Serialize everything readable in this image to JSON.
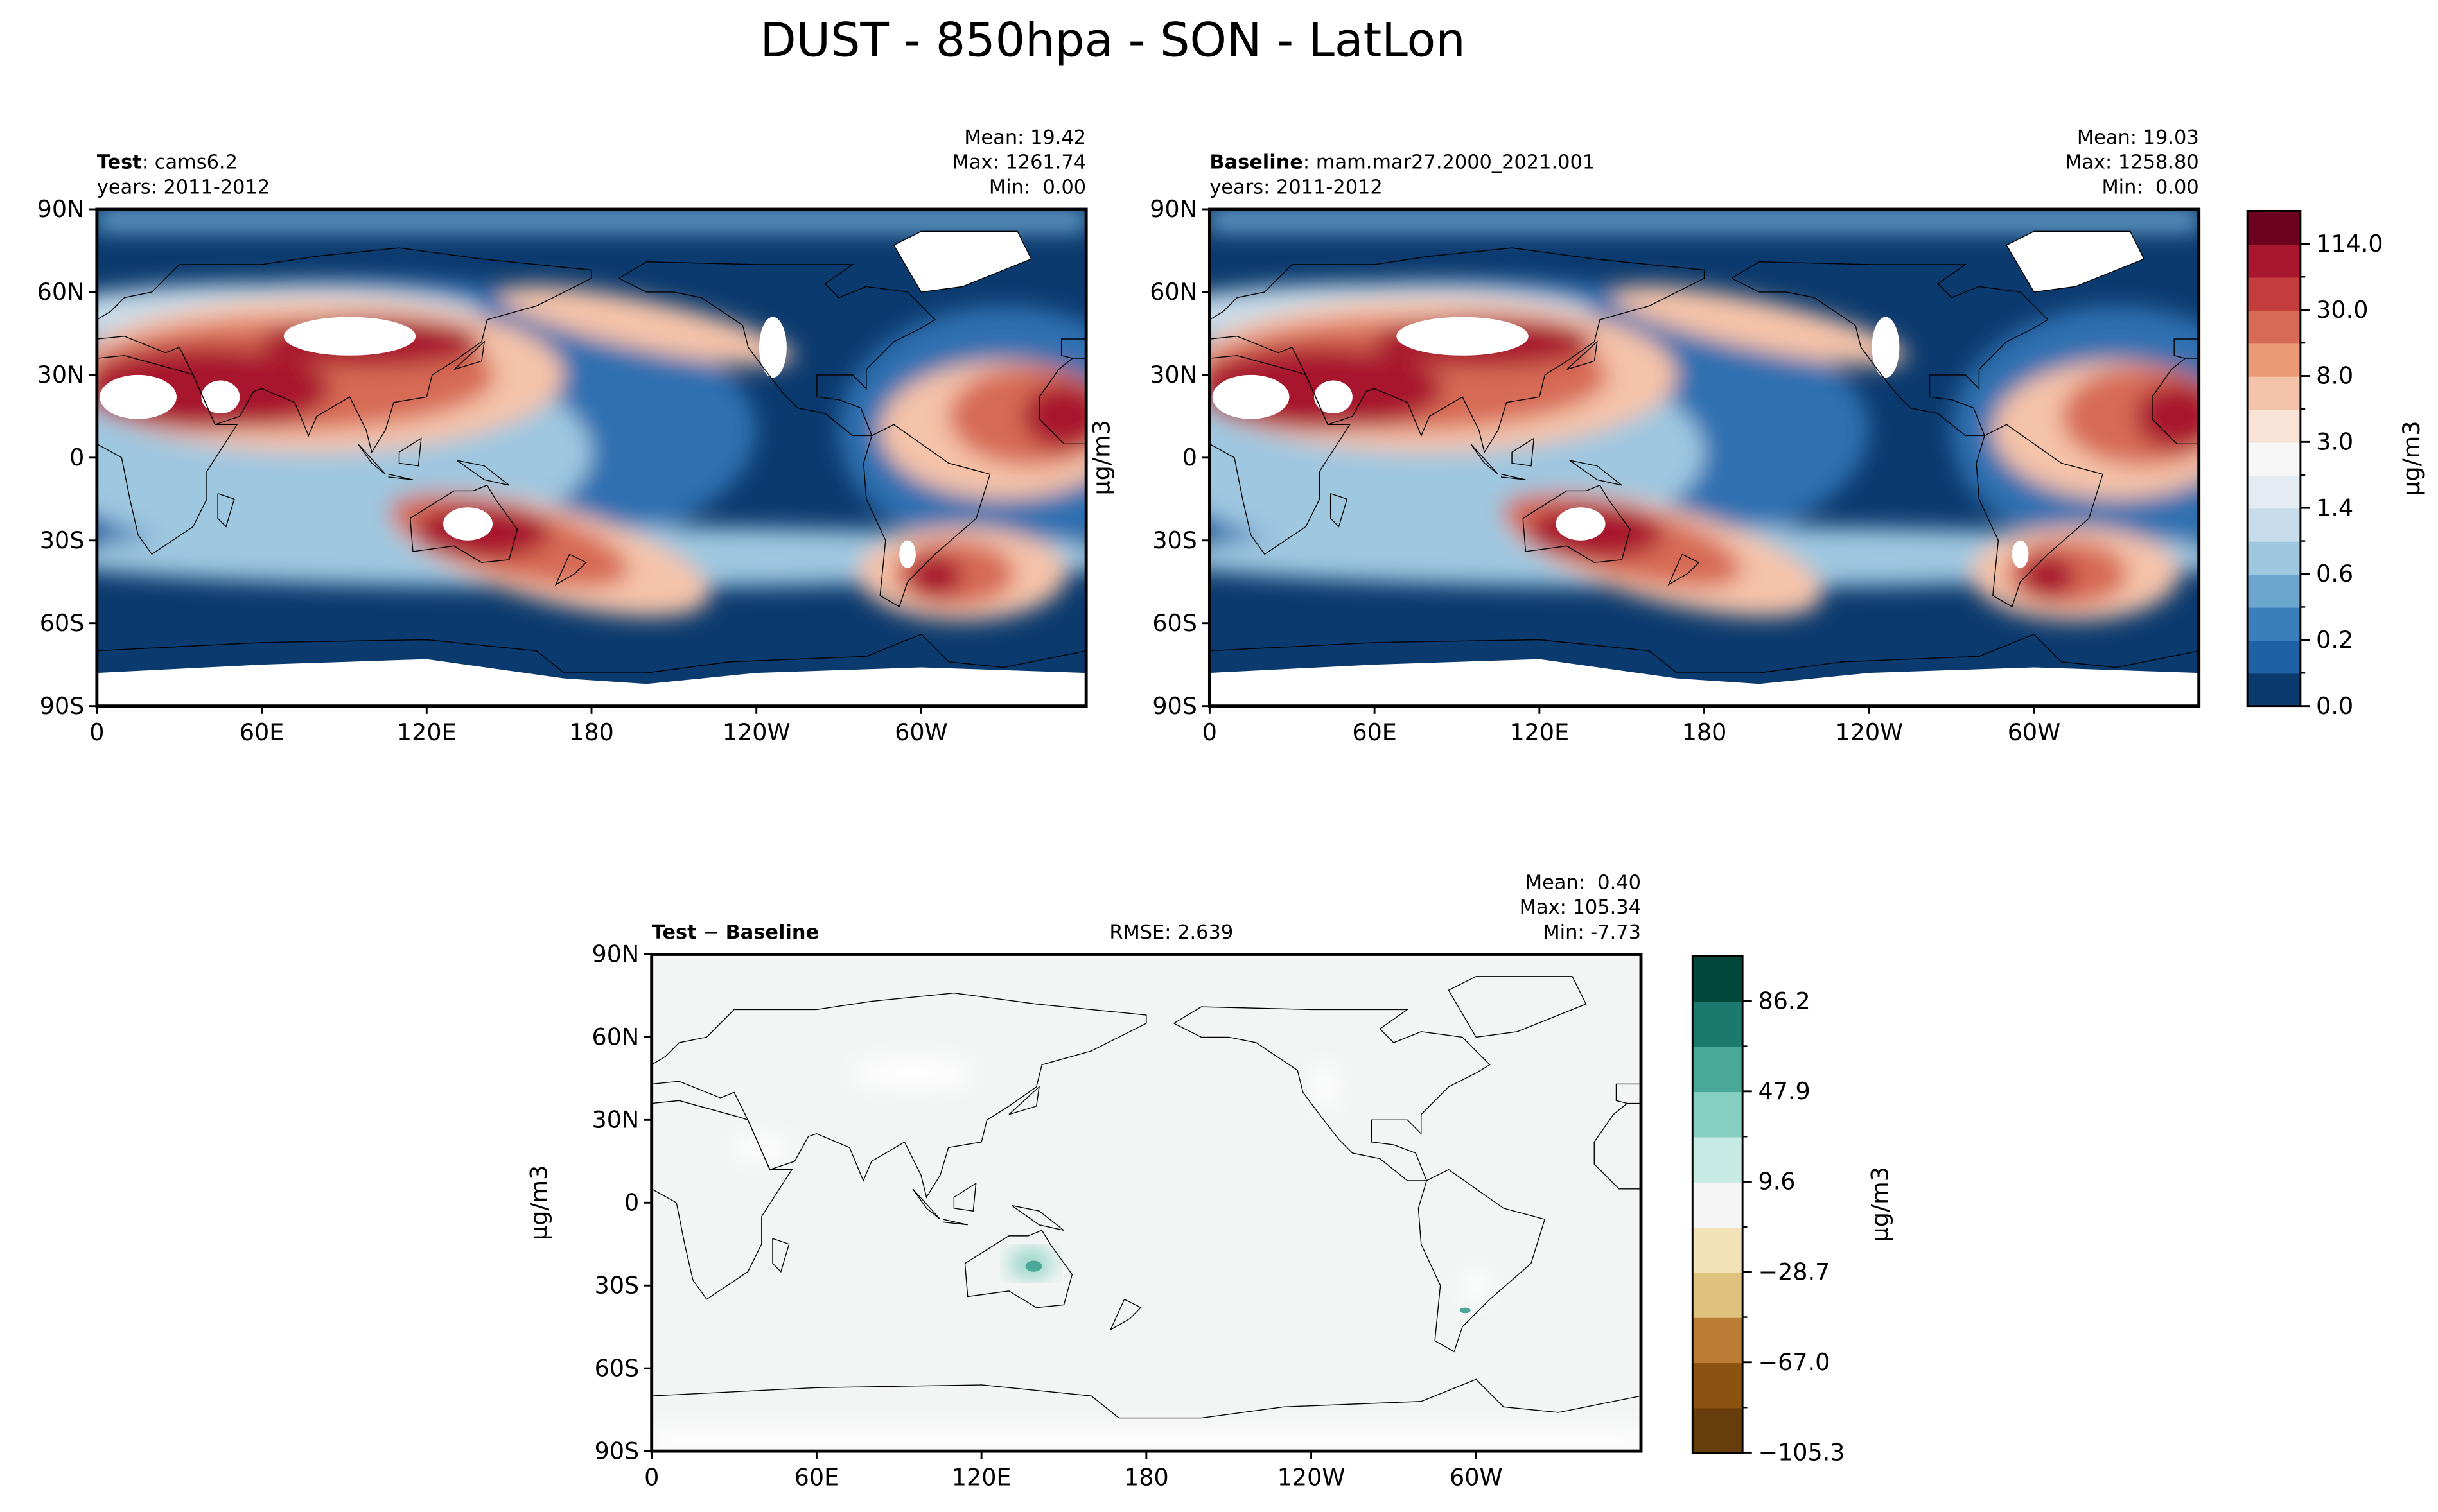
{
  "title": "DUST - 850hpa - SON - LatLon",
  "xlim": [
    0,
    360
  ],
  "ylim": [
    -90,
    90
  ],
  "xticks": [
    0,
    {
      "value": 60,
      "label": "60E"
    },
    {
      "value": 120,
      "label": "120E"
    },
    180,
    {
      "value": 240,
      "label": "120W"
    },
    {
      "value": 300,
      "label": "60W"
    }
  ],
  "yticks": [
    {
      "value": 90,
      "label": "90N"
    },
    {
      "value": 60,
      "label": "60N"
    },
    {
      "value": 30,
      "label": "30N"
    },
    0,
    {
      "value": -30,
      "label": "30S"
    },
    {
      "value": -60,
      "label": "60S"
    },
    {
      "value": -90,
      "label": "90S"
    }
  ],
  "panels": [
    {
      "name": "Test",
      "case": ": cams6.2",
      "years": "years: 2011-2012",
      "stats": [
        "Mean: 19.42",
        "Max: 1261.74",
        "Min:  0.00"
      ]
    },
    {
      "name": "Baseline",
      "case": ": mam.mar27.2000_2021.001",
      "years": "years: 2011-2012",
      "stats": [
        "Mean: 19.03",
        "Max: 1258.80",
        "Min:  0.00"
      ],
      "ylabel": "μg/m3"
    },
    {
      "title_parts": [
        "Test",
        "−",
        "Baseline"
      ],
      "rmse": "RMSE: 2.639",
      "stats": [
        "Mean:  0.40",
        "Max: 105.34",
        "Min: -7.73"
      ],
      "ylabel": "μg/m3"
    }
  ],
  "colorbars": [
    {
      "label": "μg/m3",
      "colors": [
        "#0b3a6e",
        "#1e61a5",
        "#3a7fbc",
        "#6ca6cf",
        "#9ec7e0",
        "#c6dcea",
        "#e3ecf3",
        "#f7f7f7",
        "#f9e2d6",
        "#f5c3a9",
        "#eb9a78",
        "#d76a54",
        "#c23d3c",
        "#a8172d",
        "#6d0220"
      ],
      "ticks": [
        {
          "value": 0,
          "label": "0.0"
        },
        0.2,
        0.6,
        1.4,
        {
          "value": 3,
          "label": "3.0"
        },
        {
          "value": 8,
          "label": "8.0"
        },
        {
          "value": 30,
          "label": "30.0"
        },
        {
          "value": 114,
          "label": "114.0"
        }
      ]
    },
    {
      "label": "μg/m3",
      "lim": [
        -105.34,
        105.34
      ],
      "colors": [
        "#673d0b",
        "#8c5211",
        "#bb7d36",
        "#dfc27d",
        "#f1e2b8",
        "#f5f5f5",
        "#c7eae5",
        "#86cfc1",
        "#4aa899",
        "#1b7a6d",
        "#02473a"
      ],
      "ticks": [
        {
          "value": -105.3,
          "label": "−105.3"
        },
        {
          "value": -67,
          "label": "−67.0"
        },
        {
          "value": -28.7,
          "label": "−28.7"
        },
        9.6,
        47.9,
        86.2
      ]
    }
  ]
}
